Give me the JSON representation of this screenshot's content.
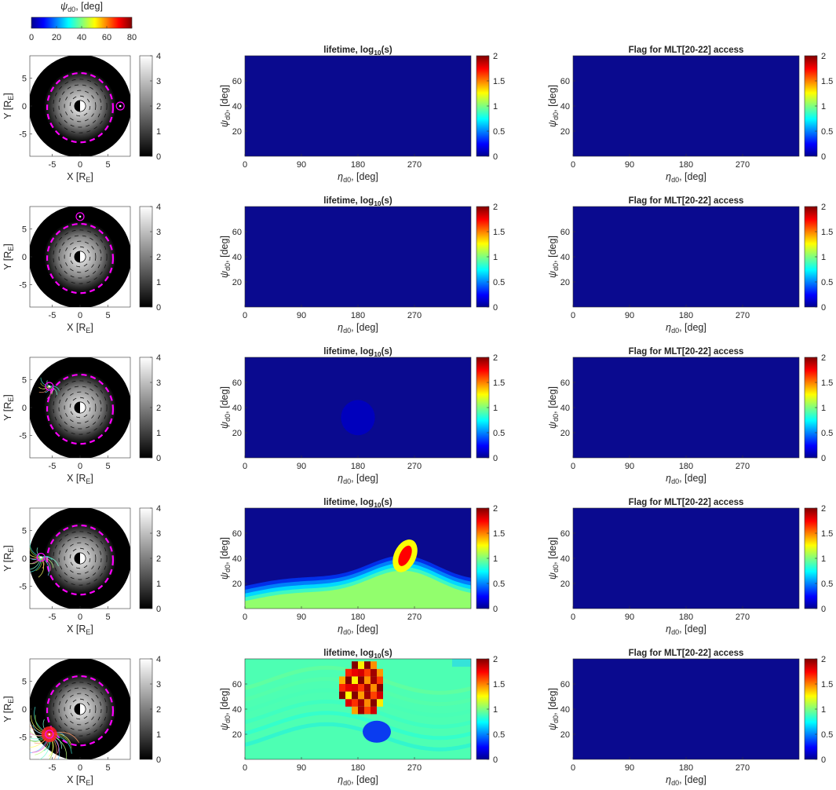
{
  "colorbar_top": {
    "label_symbol": "ψ",
    "label_sub": "d0",
    "label_rest": ", [deg]",
    "ticks": [
      "0",
      "20",
      "40",
      "60",
      "80"
    ]
  },
  "colors": {
    "panel_blue": "#0a0a8f",
    "earth_disk": "#000000",
    "magenta": "#ff00ff"
  },
  "chart_data": [
    {
      "type": "heatmap",
      "title": "",
      "xlabel": "X [R_E]",
      "ylabel": "Y [R_E]",
      "xticks": [
        "-5",
        "0",
        "5"
      ],
      "yticks": [
        "5",
        "0",
        "-5"
      ],
      "colorbar": {
        "range": [
          0,
          4
        ],
        "ticks": [
          "0",
          "1",
          "2",
          "3",
          "4"
        ],
        "colormap": "gray"
      },
      "rows": [
        {
          "marker": "circle",
          "marker_xy": [
            7.2,
            0
          ],
          "trajectories": "none"
        },
        {
          "marker": "circle",
          "marker_xy": [
            0,
            7.2
          ],
          "trajectories": "none"
        },
        {
          "marker": "circle",
          "marker_xy": [
            -5.5,
            3.8
          ],
          "trajectories": "small"
        },
        {
          "marker": "circle",
          "marker_xy": [
            -7.0,
            0.2
          ],
          "trajectories": "medium"
        },
        {
          "marker": "circle",
          "marker_xy": [
            -5.5,
            -4.5
          ],
          "trajectories": "large"
        }
      ]
    },
    {
      "type": "heatmap",
      "title_main": "lifetime, log",
      "title_sub": "10",
      "title_tail": "(s)",
      "xlabel_symbol": "η",
      "xlabel_sub": "d0",
      "xlabel_rest": ", [deg]",
      "ylabel_symbol": "ψ",
      "ylabel_sub": "d0",
      "ylabel_rest": ", [deg]",
      "xticks": [
        "0",
        "90",
        "180",
        "270"
      ],
      "yticks": [
        "20",
        "40",
        "60"
      ],
      "x_range": [
        0,
        360
      ],
      "y_range": [
        0,
        80
      ],
      "colorbar": {
        "range": [
          0,
          2
        ],
        "ticks": [
          "0",
          "0.5",
          "1",
          "1.5",
          "2"
        ],
        "colormap": "jet"
      },
      "rows": [
        {
          "pattern": "empty"
        },
        {
          "pattern": "empty"
        },
        {
          "pattern": "blob",
          "blob_center": [
            180,
            32
          ],
          "blob_value": 0.12
        },
        {
          "pattern": "wave",
          "peak_eta": 255,
          "peak_psi": 42,
          "max_value": 1.75
        },
        {
          "pattern": "full",
          "background_value": 0.9,
          "peak_value": 2.0,
          "low_blob_center": [
            210,
            22
          ]
        }
      ]
    },
    {
      "type": "heatmap",
      "title": "Flag for MLT[20-22] access",
      "xlabel_symbol": "η",
      "xlabel_sub": "d0",
      "xlabel_rest": ", [deg]",
      "ylabel_symbol": "ψ",
      "ylabel_sub": "d0",
      "ylabel_rest": ", [deg]",
      "xticks": [
        "0",
        "90",
        "180",
        "270"
      ],
      "yticks": [
        "20",
        "40",
        "60"
      ],
      "x_range": [
        0,
        360
      ],
      "y_range": [
        0,
        80
      ],
      "colorbar": {
        "range": [
          0,
          2
        ],
        "ticks": [
          "0",
          "0.5",
          "1",
          "1.5",
          "2"
        ],
        "colormap": "jet"
      },
      "rows": [
        {
          "pattern": "empty"
        },
        {
          "pattern": "empty"
        },
        {
          "pattern": "empty"
        },
        {
          "pattern": "empty"
        },
        {
          "pattern": "empty"
        }
      ]
    }
  ]
}
